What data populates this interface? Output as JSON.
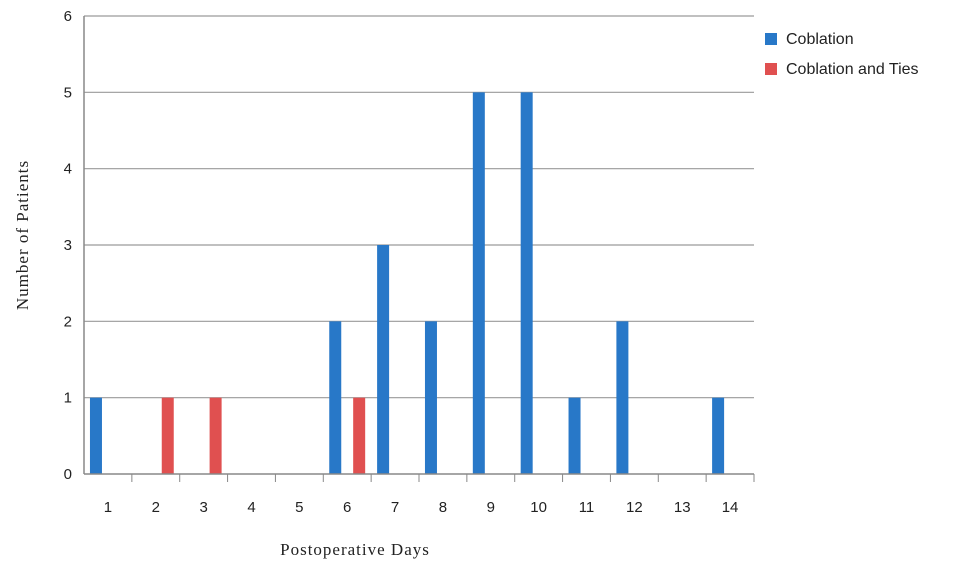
{
  "chart_data": {
    "type": "bar",
    "categories": [
      "1",
      "2",
      "3",
      "4",
      "5",
      "6",
      "7",
      "8",
      "9",
      "10",
      "11",
      "12",
      "13",
      "14"
    ],
    "series": [
      {
        "name": "Coblation",
        "color": "#2878c8",
        "values": [
          1,
          0,
          0,
          0,
          0,
          2,
          3,
          2,
          5,
          5,
          1,
          2,
          0,
          1
        ]
      },
      {
        "name": "Coblation and Ties",
        "color": "#e05050",
        "values": [
          0,
          1,
          1,
          0,
          0,
          1,
          0,
          0,
          0,
          0,
          0,
          0,
          0,
          0
        ]
      }
    ],
    "title": "",
    "xlabel": "Postoperative Days",
    "ylabel": "Number of Patients",
    "ylim": [
      0,
      6
    ],
    "yticks": [
      "0",
      "1",
      "2",
      "3",
      "4",
      "5",
      "6"
    ],
    "grid": "horizontal",
    "legend_position": "top-right"
  }
}
